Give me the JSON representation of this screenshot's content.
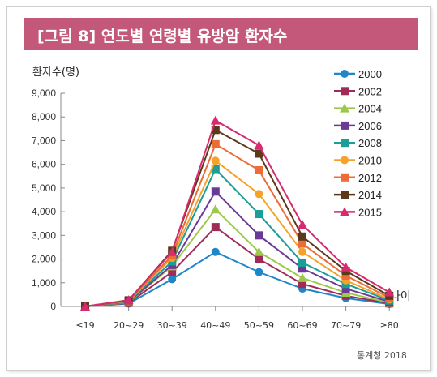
{
  "title": "[그림 8] 연도별 연령별 유방암 환자수",
  "source": "통계청 2018",
  "chart_data": {
    "type": "line",
    "ylabel": "환자수(명)",
    "xlabel": "나이",
    "ylim": [
      0,
      9000
    ],
    "yticks": [
      "0",
      "1,000",
      "2,000",
      "3,000",
      "4,000",
      "5,000",
      "6,000",
      "7,000",
      "8,000",
      "9,000"
    ],
    "categories": [
      "≤19",
      "20~29",
      "30~39",
      "40~49",
      "50~59",
      "60~69",
      "70~79",
      "≥80"
    ],
    "legend_position": "right",
    "series": [
      {
        "name": "2000",
        "color": "#1f86c8",
        "marker": "circle",
        "values": [
          0,
          120,
          1150,
          2300,
          1450,
          750,
          350,
          100
        ]
      },
      {
        "name": "2002",
        "color": "#9e2c56",
        "marker": "square",
        "values": [
          0,
          150,
          1450,
          3350,
          2000,
          950,
          450,
          130
        ]
      },
      {
        "name": "2004",
        "color": "#9ec84b",
        "marker": "triangle",
        "values": [
          0,
          170,
          1700,
          4100,
          2300,
          1200,
          580,
          160
        ]
      },
      {
        "name": "2006",
        "color": "#6b3a97",
        "marker": "square",
        "values": [
          0,
          190,
          1750,
          4850,
          3000,
          1600,
          750,
          200
        ]
      },
      {
        "name": "2008",
        "color": "#1a9e96",
        "marker": "square",
        "values": [
          0,
          210,
          1900,
          5800,
          3900,
          1850,
          950,
          250
        ]
      },
      {
        "name": "2010",
        "color": "#f6a22a",
        "marker": "circle",
        "values": [
          0,
          230,
          2050,
          6150,
          4750,
          2300,
          1100,
          300
        ]
      },
      {
        "name": "2012",
        "color": "#ec6b37",
        "marker": "square",
        "values": [
          0,
          240,
          2150,
          6850,
          5750,
          2650,
          1300,
          370
        ]
      },
      {
        "name": "2014",
        "color": "#5a3a1a",
        "marker": "square",
        "values": [
          0,
          260,
          2350,
          7450,
          6450,
          2950,
          1500,
          450
        ]
      },
      {
        "name": "2015",
        "color": "#d62b6e",
        "marker": "triangle",
        "values": [
          0,
          270,
          2300,
          7850,
          6800,
          3450,
          1650,
          600
        ]
      }
    ]
  }
}
